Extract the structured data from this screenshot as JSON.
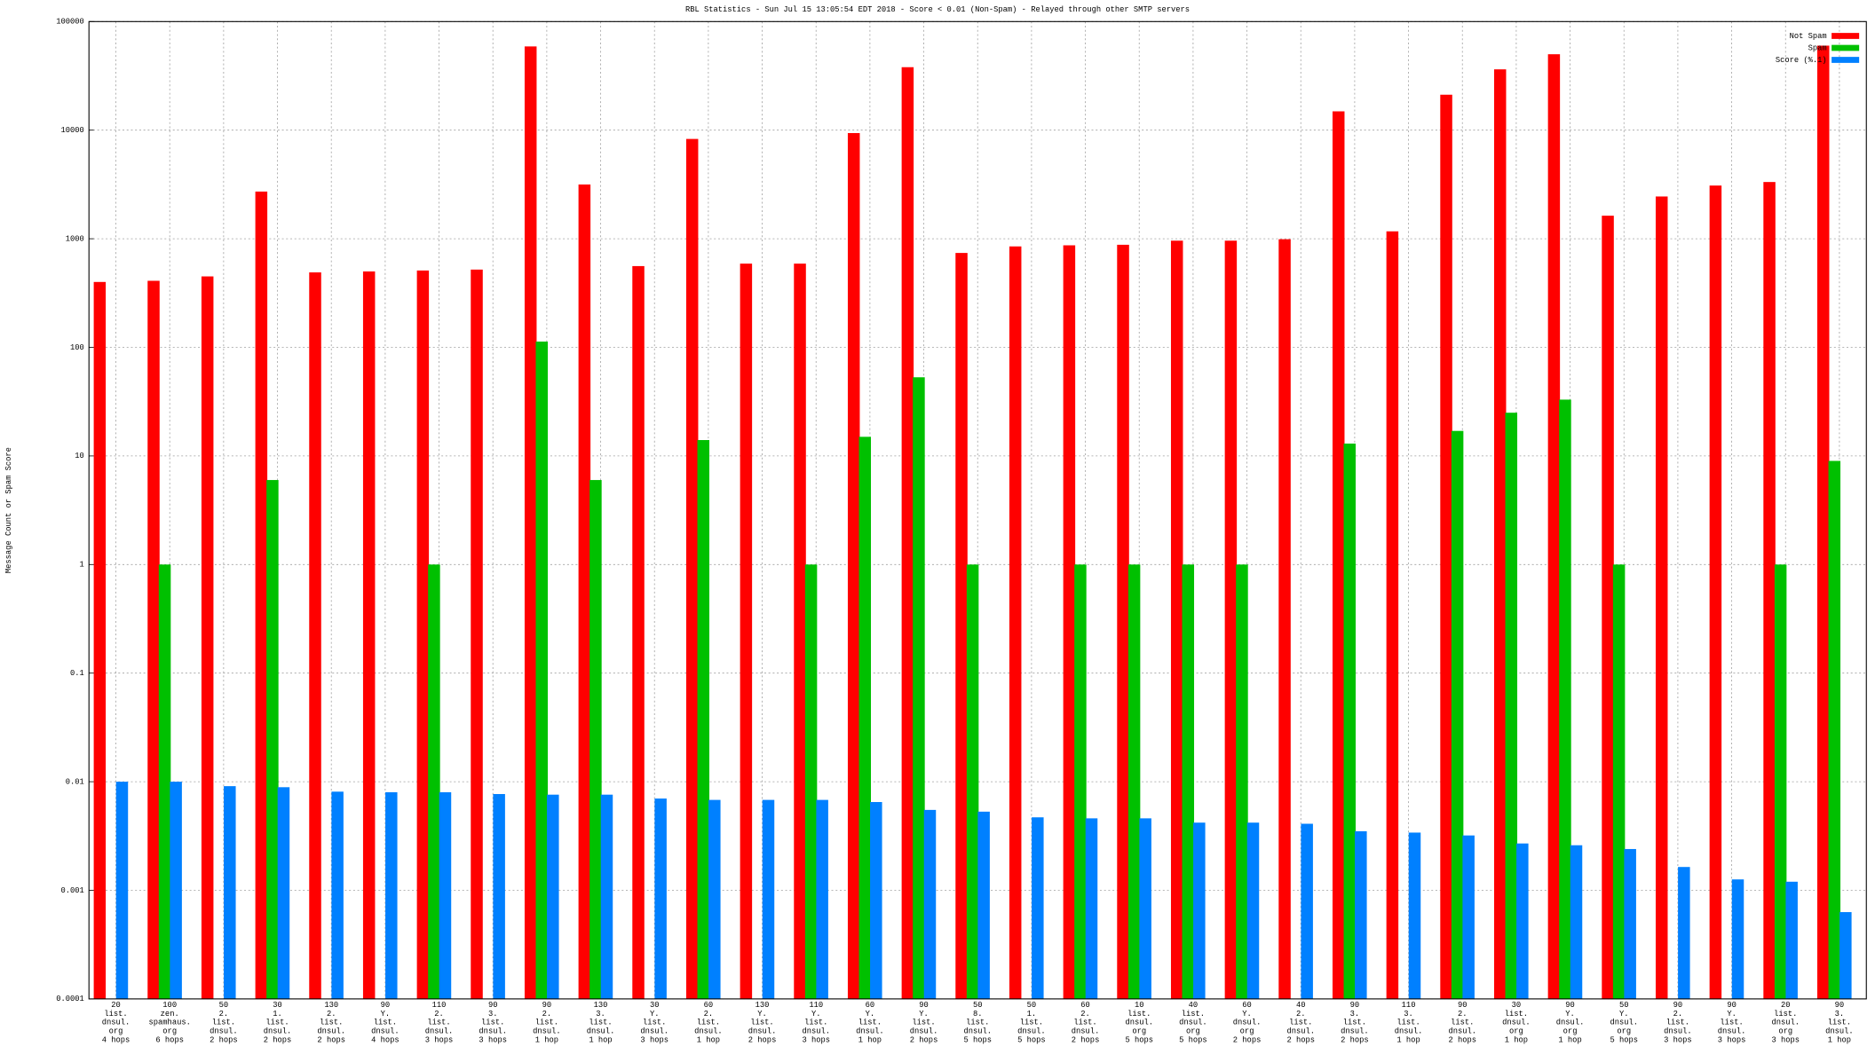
{
  "chart_data": {
    "type": "bar",
    "title": "RBL Statistics - Sun Jul 15 13:05:54 EDT 2018 - Score < 0.01 (Non-Spam) - Relayed through other SMTP servers",
    "y_label": "Message Count or Spam Score",
    "log_scale": true,
    "grid": true,
    "legend": "upper right",
    "ylim": [
      0.0001,
      100000
    ],
    "yticks": [
      0.0001,
      0.001,
      0.01,
      0.1,
      1,
      10,
      100,
      1000,
      10000,
      100000
    ],
    "categories": [
      [
        "20",
        "list.",
        "dnsul.",
        "org",
        "4 hops"
      ],
      [
        "100",
        "zen.",
        "spamhaus.",
        "org",
        "6 hops"
      ],
      [
        "50",
        "2.",
        "list.",
        "dnsul.",
        "2 hops"
      ],
      [
        "30",
        "1.",
        "list.",
        "dnsul.",
        "2 hops"
      ],
      [
        "130",
        "2.",
        "list.",
        "dnsul.",
        "2 hops"
      ],
      [
        "90",
        "Y.",
        "list.",
        "dnsul.",
        "4 hops"
      ],
      [
        "110",
        "2.",
        "list.",
        "dnsul.",
        "3 hops"
      ],
      [
        "90",
        "3.",
        "list.",
        "dnsul.",
        "3 hops"
      ],
      [
        "90",
        "2.",
        "list.",
        "dnsul.",
        "1 hop"
      ],
      [
        "130",
        "3.",
        "list.",
        "dnsul.",
        "1 hop"
      ],
      [
        "30",
        "Y.",
        "list.",
        "dnsul.",
        "3 hops"
      ],
      [
        "60",
        "2.",
        "list.",
        "dnsul.",
        "1 hop"
      ],
      [
        "130",
        "Y.",
        "list.",
        "dnsul.",
        "2 hops"
      ],
      [
        "110",
        "Y.",
        "list.",
        "dnsul.",
        "3 hops"
      ],
      [
        "60",
        "Y.",
        "list.",
        "dnsul.",
        "1 hop"
      ],
      [
        "90",
        "Y.",
        "list.",
        "dnsul.",
        "2 hops"
      ],
      [
        "50",
        "8.",
        "list.",
        "dnsul.",
        "5 hops"
      ],
      [
        "50",
        "1.",
        "list.",
        "dnsul.",
        "5 hops"
      ],
      [
        "60",
        "2.",
        "list.",
        "dnsul.",
        "2 hops"
      ],
      [
        "10",
        "list.",
        "dnsul.",
        "org",
        "5 hops"
      ],
      [
        "40",
        "list.",
        "dnsul.",
        "org",
        "5 hops"
      ],
      [
        "60",
        "Y.",
        "dnsul.",
        "org",
        "2 hops"
      ],
      [
        "40",
        "2.",
        "list.",
        "dnsul.",
        "2 hops"
      ],
      [
        "90",
        "3.",
        "list.",
        "dnsul.",
        "2 hops"
      ],
      [
        "110",
        "3.",
        "list.",
        "dnsul.",
        "1 hop"
      ],
      [
        "90",
        "2.",
        "list.",
        "dnsul.",
        "2 hops"
      ],
      [
        "30",
        "list.",
        "dnsul.",
        "org",
        "1 hop"
      ],
      [
        "90",
        "Y.",
        "dnsul.",
        "org",
        "1 hop"
      ],
      [
        "50",
        "Y.",
        "dnsul.",
        "org",
        "5 hops"
      ],
      [
        "90",
        "2.",
        "list.",
        "dnsul.",
        "3 hops"
      ],
      [
        "90",
        "Y.",
        "list.",
        "dnsul.",
        "3 hops"
      ],
      [
        "20",
        "list.",
        "dnsul.",
        "org",
        "3 hops"
      ],
      [
        "90",
        "3.",
        "list.",
        "dnsul.",
        "1 hop"
      ]
    ],
    "series": [
      {
        "name": "Not Spam",
        "color": "#ff0000",
        "values": [
          400,
          410,
          450,
          2720,
          490,
          500,
          510,
          520,
          59000,
          3160,
          560,
          8300,
          590,
          590,
          9400,
          38000,
          740,
          850,
          870,
          880,
          960,
          960,
          990,
          14900,
          1170,
          21200,
          36300,
          50000,
          1630,
          2450,
          3090,
          3330,
          60000
        ]
      },
      {
        "name": "Spam",
        "color": "#00c000",
        "values": [
          null,
          1,
          null,
          6,
          null,
          null,
          1,
          null,
          113,
          6,
          null,
          14,
          null,
          1,
          15,
          53,
          1,
          null,
          1,
          1,
          1,
          1,
          null,
          13,
          null,
          17,
          25,
          33,
          1,
          null,
          null,
          1,
          9
        ]
      },
      {
        "name": "Score (%.1)",
        "color": "#0080ff",
        "values": [
          0.01,
          0.01,
          0.0091,
          0.0089,
          0.0081,
          0.008,
          0.008,
          0.0077,
          0.0076,
          0.0076,
          0.007,
          0.0068,
          0.0068,
          0.0068,
          0.0065,
          0.0055,
          0.0053,
          0.0047,
          0.0046,
          0.0046,
          0.0042,
          0.0042,
          0.0041,
          0.0035,
          0.0034,
          0.0032,
          0.0027,
          0.0026,
          0.0024,
          0.00164,
          0.00126,
          0.0012,
          0.00063
        ]
      }
    ]
  }
}
